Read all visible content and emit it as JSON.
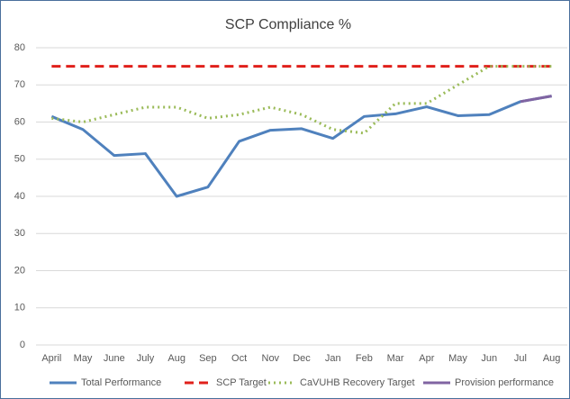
{
  "chart_data": {
    "type": "line",
    "title": "SCP Compliance %",
    "categories": [
      "April",
      "May",
      "June",
      "July",
      "Aug",
      "Sep",
      "Oct",
      "Nov",
      "Dec",
      "Jan",
      "Feb",
      "Mar",
      "Apr",
      "May",
      "Jun",
      "Jul",
      "Aug"
    ],
    "series": [
      {
        "name": "Total Performance",
        "color": "#4f81bd",
        "style": "solid",
        "values": [
          61.5,
          58,
          51,
          51.5,
          40,
          42.5,
          54.8,
          57.8,
          58.2,
          55.6,
          61.5,
          62.2,
          64.1,
          61.7,
          62,
          65.5,
          67
        ]
      },
      {
        "name": "SCP Target",
        "color": "#e0201b",
        "style": "dashed",
        "values": [
          75,
          75,
          75,
          75,
          75,
          75,
          75,
          75,
          75,
          75,
          75,
          75,
          75,
          75,
          75,
          75,
          75
        ]
      },
      {
        "name": "CaVUHB Recovery Target",
        "color": "#9bbb59",
        "style": "dotted",
        "values": [
          61,
          60,
          62,
          64,
          64,
          61,
          62,
          64,
          62,
          58,
          57,
          65,
          65,
          70,
          75,
          75,
          75
        ]
      },
      {
        "name": "Provision performance",
        "color": "#8064a2",
        "style": "solid",
        "values": [
          null,
          null,
          null,
          null,
          null,
          null,
          null,
          null,
          null,
          null,
          null,
          null,
          null,
          null,
          null,
          65.5,
          67
        ]
      }
    ],
    "ylim": [
      0,
      80
    ],
    "yticks": [
      0,
      10,
      20,
      30,
      40,
      50,
      60,
      70,
      80
    ],
    "grid": true,
    "legend": "bottom"
  }
}
